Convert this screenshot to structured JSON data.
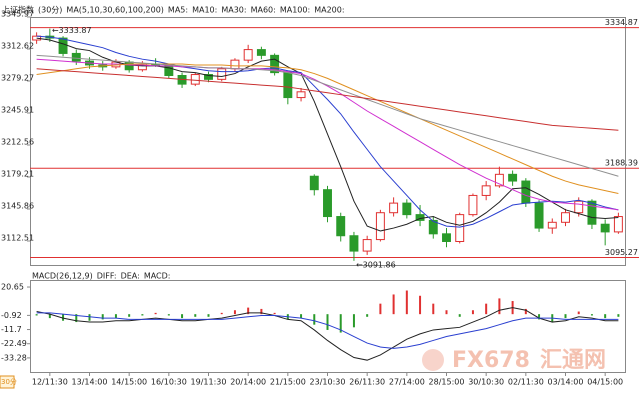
{
  "header": {
    "title": "上证指数",
    "period": "(30分)",
    "ma_label": "MA(5,10,30,60,100,200)",
    "corner_period": "30分"
  },
  "watermark": {
    "brand": "FX678",
    "name": "汇通网"
  },
  "chart_data": [
    {
      "type": "candlestick",
      "categories": [
        null,
        "12/11:30",
        null,
        null,
        "13/14:00",
        null,
        null,
        "14/15:00",
        null,
        null,
        "16/10:30",
        null,
        null,
        "19/11:30",
        null,
        null,
        "20/14:00",
        null,
        null,
        "21/15:00",
        null,
        null,
        "23/10:30",
        null,
        null,
        "26/11:30",
        null,
        null,
        "27/14:00",
        null,
        null,
        "28/15:00",
        null,
        null,
        "30/10:30",
        null,
        null,
        "02/11:30",
        null,
        null,
        "03/14:00",
        null,
        null,
        "04/15:00",
        null
      ],
      "open": [
        3322,
        3326,
        3324,
        3308,
        3300,
        3296,
        3294,
        3299,
        3291,
        3297,
        3296,
        3285,
        3276,
        3286,
        3281,
        3292,
        3301,
        3312,
        3306,
        3288,
        3262,
        3180,
        3166,
        3138,
        3118,
        3102,
        3114,
        3142,
        3152,
        3140,
        3134,
        3120,
        3112,
        3140,
        3160,
        3170,
        3182,
        3175,
        3152,
        3126,
        3132,
        3142,
        3154,
        3130,
        3122
      ],
      "high": [
        3330,
        3333.87,
        3326,
        3312,
        3304,
        3300,
        3302,
        3301,
        3300,
        3303,
        3297,
        3288,
        3288,
        3289,
        3294,
        3303,
        3317,
        3315,
        3308,
        3290,
        3272,
        3182,
        3170,
        3142,
        3122,
        3118,
        3145,
        3158,
        3156,
        3150,
        3138,
        3126,
        3142,
        3162,
        3175,
        3190,
        3186,
        3178,
        3155,
        3136,
        3146,
        3158,
        3156,
        3135,
        3142
      ],
      "low": [
        3318,
        3320,
        3305,
        3296,
        3292,
        3290,
        3292,
        3288,
        3289,
        3294,
        3282,
        3272,
        3274,
        3278,
        3279,
        3289,
        3298,
        3302,
        3285,
        3255,
        3258,
        3160,
        3132,
        3112,
        3091.86,
        3098,
        3112,
        3138,
        3136,
        3128,
        3115,
        3106,
        3110,
        3138,
        3155,
        3168,
        3170,
        3148,
        3122,
        3120,
        3128,
        3138,
        3125,
        3108,
        3120
      ],
      "close": [
        3326,
        3324,
        3308,
        3300,
        3296,
        3294,
        3299,
        3291,
        3297,
        3296,
        3285,
        3276,
        3286,
        3281,
        3292,
        3301,
        3312,
        3306,
        3288,
        3262,
        3268,
        3166,
        3138,
        3118,
        3102,
        3114,
        3142,
        3152,
        3140,
        3134,
        3120,
        3112,
        3140,
        3160,
        3170,
        3182,
        3175,
        3152,
        3126,
        3132,
        3142,
        3154,
        3130,
        3122,
        3138
      ],
      "up_color": "#e03030",
      "down_color": "#2a9a2a",
      "series": [
        {
          "name": "MA5:",
          "color": "#222222",
          "values": [
            3324,
            3322,
            3318,
            3313,
            3311,
            3304,
            3299,
            3296,
            3295,
            3295,
            3293,
            3289,
            3288,
            3285,
            3284,
            3287,
            3294,
            3300,
            3302,
            3294,
            3287,
            3258,
            3224,
            3190,
            3154,
            3128,
            3123,
            3126,
            3130,
            3136,
            3138,
            3132,
            3129,
            3133,
            3142,
            3153,
            3167,
            3168,
            3161,
            3153,
            3145,
            3141,
            3137,
            3136,
            3137
          ]
        },
        {
          "name": "MA10:",
          "color": "#2a3fd0",
          "values": [
            3326,
            3325,
            3323,
            3320,
            3317,
            3314,
            3309,
            3305,
            3302,
            3300,
            3297,
            3294,
            3292,
            3290,
            3289,
            3289,
            3290,
            3292,
            3293,
            3290,
            3288,
            3274,
            3260,
            3245,
            3226,
            3208,
            3190,
            3175,
            3160,
            3145,
            3133,
            3128,
            3127,
            3130,
            3136,
            3143,
            3150,
            3152,
            3153,
            3154,
            3153,
            3155,
            3152,
            3148,
            3145
          ]
        },
        {
          "name": "MA30:",
          "color": "#d030d0",
          "values": [
            3302,
            3301,
            3300,
            3299,
            3298,
            3297,
            3297,
            3296,
            3296,
            3295,
            3295,
            3294,
            3294,
            3293,
            3293,
            3292,
            3292,
            3292,
            3291,
            3289,
            3287,
            3281,
            3274,
            3266,
            3257,
            3248,
            3240,
            3232,
            3224,
            3216,
            3208,
            3200,
            3192,
            3185,
            3178,
            3172,
            3166,
            3160,
            3156,
            3153,
            3152,
            3151,
            3149,
            3147,
            3145
          ]
        },
        {
          "name": "MA60:",
          "color": "#e09020",
          "values": [
            3286,
            3288,
            3290,
            3292,
            3294,
            3295,
            3296,
            3297,
            3297,
            3297,
            3297,
            3297,
            3296,
            3296,
            3296,
            3295,
            3295,
            3295,
            3294,
            3293,
            3291,
            3287,
            3282,
            3276,
            3270,
            3264,
            3258,
            3252,
            3246,
            3240,
            3234,
            3228,
            3222,
            3216,
            3210,
            3204,
            3198,
            3192,
            3186,
            3180,
            3175,
            3171,
            3168,
            3165,
            3162
          ]
        },
        {
          "name": "MA100:",
          "color": "#909090",
          "values": [
            3306,
            3305,
            3304,
            3303,
            3302,
            3301,
            3300,
            3299,
            3298,
            3297,
            3296,
            3295,
            3294,
            3293,
            3293,
            3292,
            3292,
            3291,
            3290,
            3288,
            3285,
            3280,
            3275,
            3270,
            3265,
            3260,
            3255,
            3250,
            3245,
            3240,
            3236,
            3232,
            3228,
            3224,
            3220,
            3216,
            3212,
            3208,
            3204,
            3200,
            3196,
            3192,
            3188,
            3184,
            3180
          ]
        },
        {
          "name": "MA200:",
          "color": "#c83030",
          "values": [
            3292,
            3291,
            3290,
            3289,
            3288,
            3287,
            3286,
            3285,
            3284,
            3283,
            3282,
            3281,
            3280,
            3279,
            3278,
            3277,
            3276,
            3275,
            3274,
            3273,
            3271,
            3269,
            3267,
            3265,
            3263,
            3261,
            3259,
            3257,
            3255,
            3253,
            3251,
            3249,
            3247,
            3245,
            3243,
            3241,
            3239,
            3237,
            3235,
            3233,
            3232,
            3231,
            3230,
            3229,
            3228
          ]
        }
      ],
      "ylim": [
        3087.5,
        3345.97
      ],
      "yticks": [
        3345.97,
        3312.62,
        3279.27,
        3245.91,
        3212.56,
        3179.21,
        3145.86,
        3112.51
      ],
      "hlines": [
        3334.87,
        3188.39,
        3095.27
      ],
      "hline_color": "#e03030",
      "annotations": [
        {
          "value": 3333.87,
          "label": "←3333.87"
        },
        {
          "value": 3091.86,
          "label": "←3091.86"
        }
      ]
    },
    {
      "type": "macd",
      "title": "MACD(26,12,9)",
      "series": [
        {
          "name": "DIFF:",
          "color": "#222222",
          "values": [
            2,
            0,
            -3,
            -5,
            -6,
            -6,
            -5,
            -5,
            -4,
            -3,
            -4,
            -5,
            -5,
            -4,
            -3,
            -1,
            1,
            1,
            -1,
            -4,
            -5,
            -12,
            -20,
            -27,
            -33,
            -35,
            -31,
            -25,
            -19,
            -15,
            -12,
            -11,
            -10,
            -6,
            -2,
            3,
            5,
            3,
            -3,
            -6,
            -5,
            -2,
            -3,
            -5,
            -5
          ]
        },
        {
          "name": "DEA:",
          "color": "#2a3fd0",
          "values": [
            1,
            1,
            0,
            -1,
            -2,
            -3,
            -3,
            -4,
            -4,
            -4,
            -4,
            -4,
            -4,
            -4,
            -4,
            -3,
            -2,
            -1,
            -1,
            -2,
            -3,
            -5,
            -8,
            -12,
            -17,
            -22,
            -25,
            -26,
            -25,
            -23,
            -20,
            -17,
            -15,
            -13,
            -11,
            -8,
            -5,
            -3,
            -3,
            -3,
            -4,
            -4,
            -4,
            -4,
            -4
          ]
        }
      ],
      "histogram": {
        "name": "MACD:",
        "color": "#d030d0",
        "up_color": "#e03030",
        "down_color": "#2a9a2a",
        "values": [
          -1,
          -3,
          -5,
          -6,
          -5,
          -4,
          -3,
          -2,
          -1,
          1,
          -1,
          -3,
          -2,
          -2,
          1,
          3,
          5,
          4,
          1,
          -4,
          -3,
          -8,
          -12,
          -14,
          -10,
          -2,
          8,
          15,
          18,
          14,
          8,
          3,
          -2,
          3,
          8,
          12,
          10,
          4,
          -4,
          -6,
          -3,
          2,
          -1,
          -3,
          -2
        ]
      },
      "ylim": [
        -44,
        26
      ],
      "yticks": [
        20.65,
        -0.92,
        -11.7,
        -22.49,
        -33.28
      ]
    }
  ]
}
